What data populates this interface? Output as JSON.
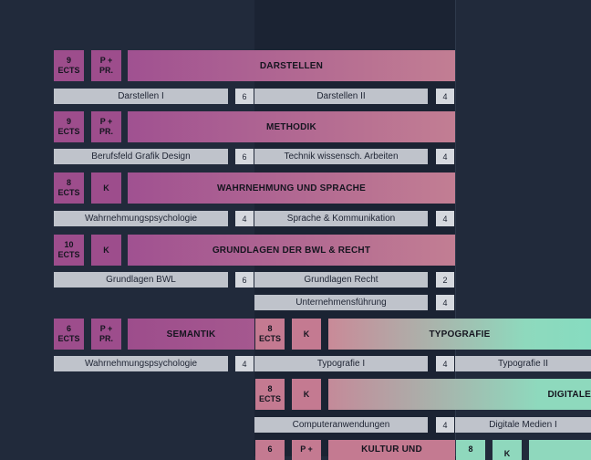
{
  "modules": {
    "darstellen": {
      "ects": "9\nECTS",
      "type": "P +\nPR.",
      "title": "DARSTELLEN",
      "sub1": "Darstellen I",
      "num1": "6",
      "sub2": "Darstellen II",
      "num2": "4"
    },
    "methodik": {
      "ects": "9\nECTS",
      "type": "P +\nPR.",
      "title": "METHODIK",
      "sub1": "Berufsfeld Grafik Design",
      "num1": "6",
      "sub2": "Technik wissensch. Arbeiten",
      "num2": "4"
    },
    "wahrnehmung": {
      "ects": "8\nECTS",
      "type": "K",
      "title": "WAHRNEHMUNG UND SPRACHE",
      "sub1": "Wahrnehmungspsychologie",
      "num1": "4",
      "sub2": "Sprache & Kommunikation",
      "num2": "4"
    },
    "bwl": {
      "ects": "10\nECTS",
      "type": "K",
      "title": "GRUNDLAGEN DER BWL & RECHT",
      "sub1": "Grundlagen BWL",
      "num1": "6",
      "sub2": "Grundlagen Recht",
      "num2": "2",
      "sub3": "Unternehmensführung",
      "num3": "4"
    },
    "semantik": {
      "ects": "6\nECTS",
      "type": "P +\nPR.",
      "title": "SEMANTIK",
      "sub1": "Wahrnehmungspsychologie",
      "num1": "4"
    },
    "typografie": {
      "ects": "8\nECTS",
      "type": "K",
      "title": "TYPOGRAFIE",
      "sub1": "Typografie I",
      "num1": "4",
      "sub2": "Typografie II"
    },
    "digitale": {
      "ects": "8\nECTS",
      "type": "K",
      "title": "DIGITALE",
      "sub1": "Computeranwendungen",
      "num1": "4",
      "sub2": "Digitale Medien I"
    },
    "kultur": {
      "ects": "6",
      "type": "P +",
      "title": "KULTUR UND"
    },
    "extra": {
      "ects": "8",
      "type": "K"
    }
  },
  "colors": {
    "background": "#212a3b",
    "magenta": "#9d4d8c",
    "rose": "#c47a91",
    "teal": "#8fd8bd",
    "sub_grey": "#bfc3cb"
  }
}
